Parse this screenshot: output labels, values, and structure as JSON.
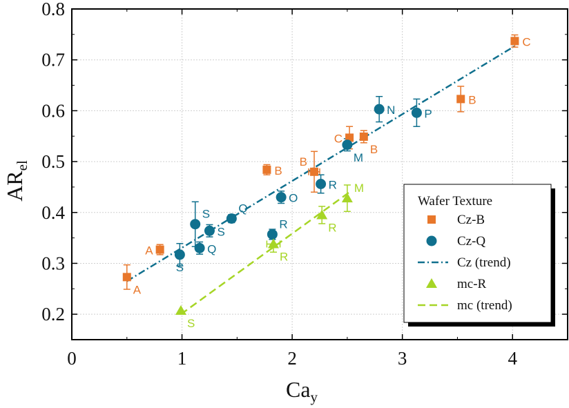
{
  "chart_data": {
    "type": "scatter",
    "title": "",
    "xlabel": "Ca",
    "xlabel_sub": "y",
    "ylabel": "AR",
    "ylabel_sub": "el",
    "xlim": [
      0,
      4.5
    ],
    "ylim": [
      0.15,
      0.8
    ],
    "xticks": [
      0,
      1,
      2,
      3,
      4
    ],
    "xtick_labels": [
      "0",
      "1",
      "2",
      "3",
      "4"
    ],
    "yticks": [
      0.2,
      0.3,
      0.4,
      0.5,
      0.6,
      0.7,
      0.8
    ],
    "ytick_labels": [
      "0.2",
      "0.3",
      "0.4",
      "0.5",
      "0.6",
      "0.7",
      "0.8"
    ],
    "grid": true,
    "legend": {
      "title": "Wafer Texture",
      "position": "bottom-right",
      "entries": [
        {
          "label": "Cz-B",
          "series": "Cz-B"
        },
        {
          "label": "Cz-Q",
          "series": "Cz-Q"
        },
        {
          "label": "Cz (trend)",
          "series": "Cz (trend)"
        },
        {
          "label": "mc-R",
          "series": "mc-R"
        },
        {
          "label": "mc (trend)",
          "series": "mc (trend)"
        }
      ]
    },
    "series": [
      {
        "name": "Cz-B",
        "marker": "square",
        "color": "#e8772b",
        "points": [
          {
            "x": 0.5,
            "y": 0.273,
            "err": 0.024,
            "label": "A",
            "label_pos": "below-right"
          },
          {
            "x": 0.8,
            "y": 0.327,
            "err": 0.01,
            "label": "A",
            "label_pos": "left"
          },
          {
            "x": 1.77,
            "y": 0.484,
            "err": 0.01,
            "label": "B",
            "label_pos": "right"
          },
          {
            "x": 2.2,
            "y": 0.48,
            "err": 0.04,
            "xerr": 0.05,
            "label": "B",
            "label_pos": "above-left"
          },
          {
            "x": 2.52,
            "y": 0.547,
            "err": 0.022,
            "label": "C",
            "label_pos": "left"
          },
          {
            "x": 2.65,
            "y": 0.549,
            "err": 0.012,
            "label": "B",
            "label_pos": "below-right"
          },
          {
            "x": 3.53,
            "y": 0.623,
            "err": 0.025,
            "label": "B",
            "label_pos": "right"
          },
          {
            "x": 4.02,
            "y": 0.737,
            "err": 0.012,
            "label": "C",
            "label_pos": "right"
          }
        ]
      },
      {
        "name": "Cz-Q",
        "marker": "circle",
        "color": "#10708e",
        "points": [
          {
            "x": 0.98,
            "y": 0.317,
            "err": 0.022,
            "label": "S",
            "label_pos": "below"
          },
          {
            "x": 1.12,
            "y": 0.377,
            "err": 0.044,
            "label": "S",
            "label_pos": "above-right"
          },
          {
            "x": 1.16,
            "y": 0.33,
            "err": 0.012,
            "label": "Q",
            "label_pos": "right"
          },
          {
            "x": 1.25,
            "y": 0.364,
            "err": 0.012,
            "label": "S",
            "label_pos": "right"
          },
          {
            "x": 1.45,
            "y": 0.388,
            "err": 0.008,
            "label": "Q",
            "label_pos": "above-right"
          },
          {
            "x": 1.82,
            "y": 0.357,
            "err": 0.01,
            "label": "R",
            "label_pos": "above-right"
          },
          {
            "x": 1.9,
            "y": 0.43,
            "err": 0.012,
            "label": "O",
            "label_pos": "right"
          },
          {
            "x": 2.26,
            "y": 0.456,
            "err": 0.018,
            "label": "R",
            "label_pos": "right"
          },
          {
            "x": 2.5,
            "y": 0.533,
            "err": 0.012,
            "label": "M",
            "label_pos": "below-right"
          },
          {
            "x": 2.79,
            "y": 0.603,
            "err": 0.025,
            "label": "N",
            "label_pos": "right"
          },
          {
            "x": 3.13,
            "y": 0.596,
            "err": 0.027,
            "label": "P",
            "label_pos": "right"
          }
        ]
      },
      {
        "name": "mc-R",
        "marker": "triangle",
        "color": "#a6d526",
        "points": [
          {
            "x": 0.99,
            "y": 0.207,
            "err": 0.0,
            "label": "S",
            "label_pos": "below-right"
          },
          {
            "x": 1.83,
            "y": 0.338,
            "err": 0.016,
            "xerr": 0.06,
            "label": "R",
            "label_pos": "below-right"
          },
          {
            "x": 2.27,
            "y": 0.395,
            "err": 0.017,
            "label": "R",
            "label_pos": "below-right"
          },
          {
            "x": 2.5,
            "y": 0.428,
            "err": 0.026,
            "label": "M",
            "label_pos": "above-right"
          }
        ]
      }
    ],
    "trends": [
      {
        "name": "Cz (trend)",
        "style": "dash-dot",
        "color": "#10708e",
        "x": [
          0.5,
          4.02
        ],
        "y": [
          0.265,
          0.727
        ]
      },
      {
        "name": "mc (trend)",
        "style": "dashed",
        "color": "#a6d526",
        "x": [
          0.99,
          2.52
        ],
        "y": [
          0.2,
          0.44
        ]
      }
    ]
  }
}
